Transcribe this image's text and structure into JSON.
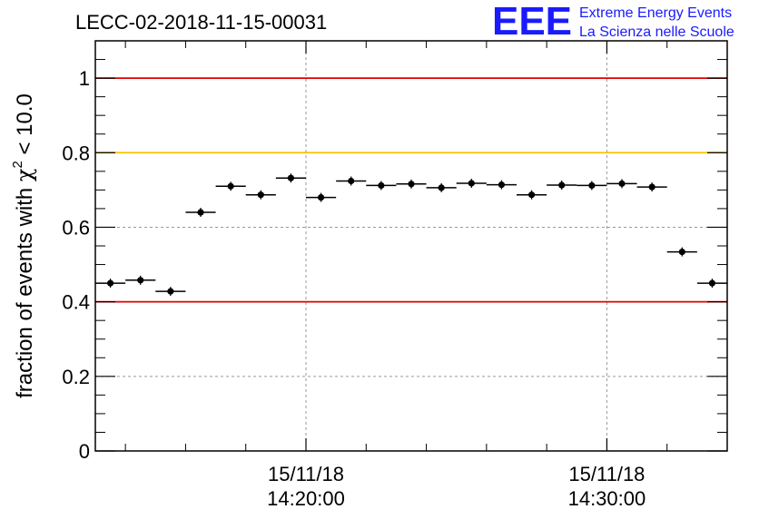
{
  "title": "LECC-02-2018-11-15-00031",
  "logo": {
    "mark": "EEE",
    "line1": "Extreme Energy Events",
    "line2": "La Scienza nelle Scuole",
    "color": "#1a1aff"
  },
  "chart_data": {
    "type": "scatter",
    "title": "LECC-02-2018-11-15-00031",
    "xlabel": "",
    "ylabel_parts": [
      "fraction of events with ",
      "χ",
      "2",
      " < 10.0"
    ],
    "ylim": [
      0,
      1.1
    ],
    "yticks": [
      0,
      0.2,
      0.4,
      0.6,
      0.8,
      1
    ],
    "ytick_labels": [
      "0",
      "0.2",
      "0.4",
      "0.6",
      "0.8",
      "1"
    ],
    "xlim": [
      "2018-11-15 14:13:00",
      "2018-11-15 14:34:00"
    ],
    "xticks": [
      {
        "t": "2018-11-15 14:20:00",
        "date": "15/11/18",
        "time": "14:20:00"
      },
      {
        "t": "2018-11-15 14:30:00",
        "date": "15/11/18",
        "time": "14:30:00"
      }
    ],
    "bin_width_seconds": 60,
    "grid": true,
    "series": [
      {
        "x": [
          "14:13:30",
          "14:14:30",
          "14:15:30",
          "14:16:30",
          "14:17:30",
          "14:18:30",
          "14:19:30",
          "14:20:30",
          "14:21:30",
          "14:22:30",
          "14:23:30",
          "14:24:30",
          "14:25:30",
          "14:26:30",
          "14:27:30",
          "14:28:30",
          "14:29:30",
          "14:30:30",
          "14:31:30",
          "14:32:30",
          "14:33:30"
        ],
        "y": [
          0.45,
          0.458,
          0.428,
          0.64,
          0.71,
          0.687,
          0.732,
          0.68,
          0.724,
          0.712,
          0.716,
          0.706,
          0.718,
          0.714,
          0.687,
          0.713,
          0.712,
          0.717,
          0.708,
          0.534,
          0.45
        ]
      }
    ],
    "reference_lines": [
      {
        "y": 1.0,
        "color": "#e00000"
      },
      {
        "y": 0.8,
        "color": "#ffc000"
      },
      {
        "y": 0.4,
        "color": "#e00000"
      }
    ]
  }
}
